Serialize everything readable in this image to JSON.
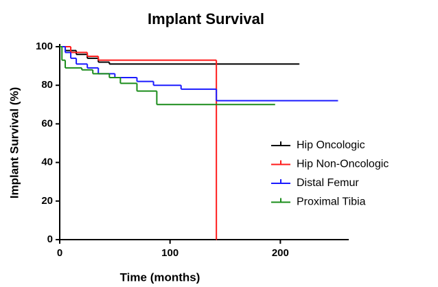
{
  "chart_data": {
    "type": "step",
    "title": "Implant Survival",
    "x_label": "Time (months)",
    "y_label": "Implant Survival (%)",
    "xlim": [
      0,
      262
    ],
    "ylim": [
      0,
      100
    ],
    "xticks": [
      0,
      100,
      200
    ],
    "yticks": [
      0,
      20,
      40,
      60,
      80,
      100
    ],
    "legend": "right",
    "series": [
      {
        "name": "Hip Oncologic",
        "color": "#000000",
        "x": [
          0,
          5,
          15,
          25,
          35,
          45,
          217
        ],
        "values": [
          100,
          98,
          96,
          94,
          92,
          91,
          91
        ]
      },
      {
        "name": "Hip Non-Oncologic",
        "color": "#ff1a1a",
        "x": [
          0,
          10,
          25,
          35,
          142,
          142
        ],
        "values": [
          100,
          97,
          95,
          93,
          0,
          0
        ]
      },
      {
        "name": "Distal Femur",
        "color": "#1a1aff",
        "x": [
          0,
          5,
          10,
          15,
          25,
          35,
          50,
          70,
          85,
          110,
          142,
          252
        ],
        "values": [
          100,
          97,
          94,
          91,
          89,
          86,
          84,
          82,
          80,
          78,
          72,
          72
        ]
      },
      {
        "name": "Proximal Tibia",
        "color": "#1a8c1a",
        "x": [
          0,
          2,
          5,
          20,
          30,
          45,
          55,
          70,
          88,
          195
        ],
        "values": [
          100,
          93,
          89,
          88,
          86,
          84,
          81,
          77,
          70,
          70
        ]
      }
    ]
  }
}
